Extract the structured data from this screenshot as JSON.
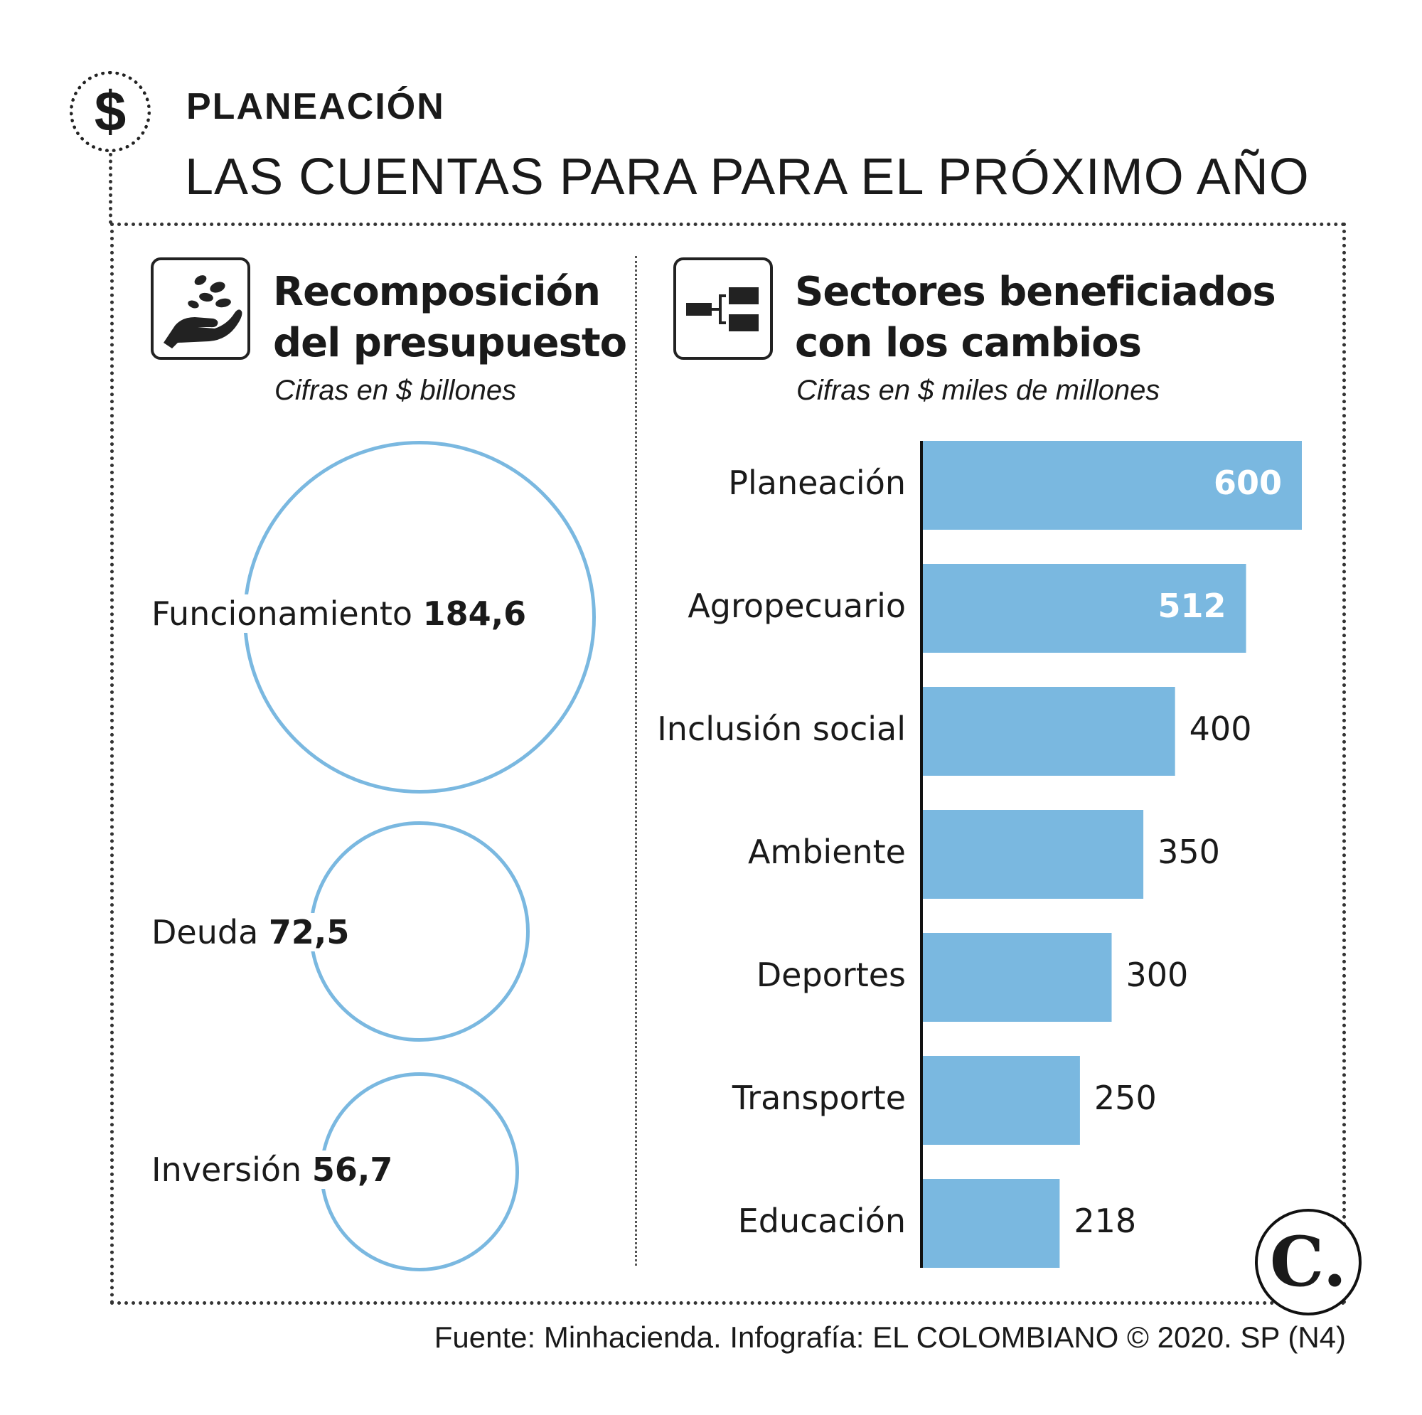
{
  "header": {
    "icon": "dollar-sign-icon",
    "kicker": "PLANEACIÓN",
    "title": "LAS CUENTAS PARA PARA EL PRÓXIMO AÑO"
  },
  "left_panel": {
    "icon": "hand-coins-icon",
    "title_line1": "Recomposición",
    "title_line2": "del presupuesto",
    "subtitle": "Cifras en $ billones"
  },
  "right_panel": {
    "icon": "branch-diagram-icon",
    "title_line1": "Sectores beneficiados",
    "title_line2": "con los cambios",
    "subtitle": "Cifras en $ miles de millones"
  },
  "chart_data": [
    {
      "type": "bubble",
      "title": "Recomposición del presupuesto",
      "subtitle": "Cifras en $ billones",
      "categories": [
        "Funcionamiento",
        "Deuda",
        "Inversión"
      ],
      "values": [
        184.6,
        72.5,
        56.7
      ],
      "value_labels": [
        "184,6",
        "72,5",
        "56,7"
      ],
      "color": "#7ab8e0"
    },
    {
      "type": "bar",
      "orientation": "horizontal",
      "title": "Sectores beneficiados con los cambios",
      "subtitle": "Cifras en $ miles de millones",
      "categories": [
        "Planeación",
        "Agropecuario",
        "Inclusión social",
        "Ambiente",
        "Deportes",
        "Transporte",
        "Educación"
      ],
      "values": [
        600,
        512,
        400,
        350,
        300,
        250,
        218
      ],
      "xlim": [
        0,
        600
      ],
      "color": "#7ab8e0",
      "label_color_inside": "#ffffff",
      "label_color_outside": "#1a1a1a"
    }
  ],
  "footer": {
    "source": "Fuente: Minhacienda. Infografía: EL COLOMBIANO © 2020. SP (N4)",
    "logo_text": "C."
  }
}
